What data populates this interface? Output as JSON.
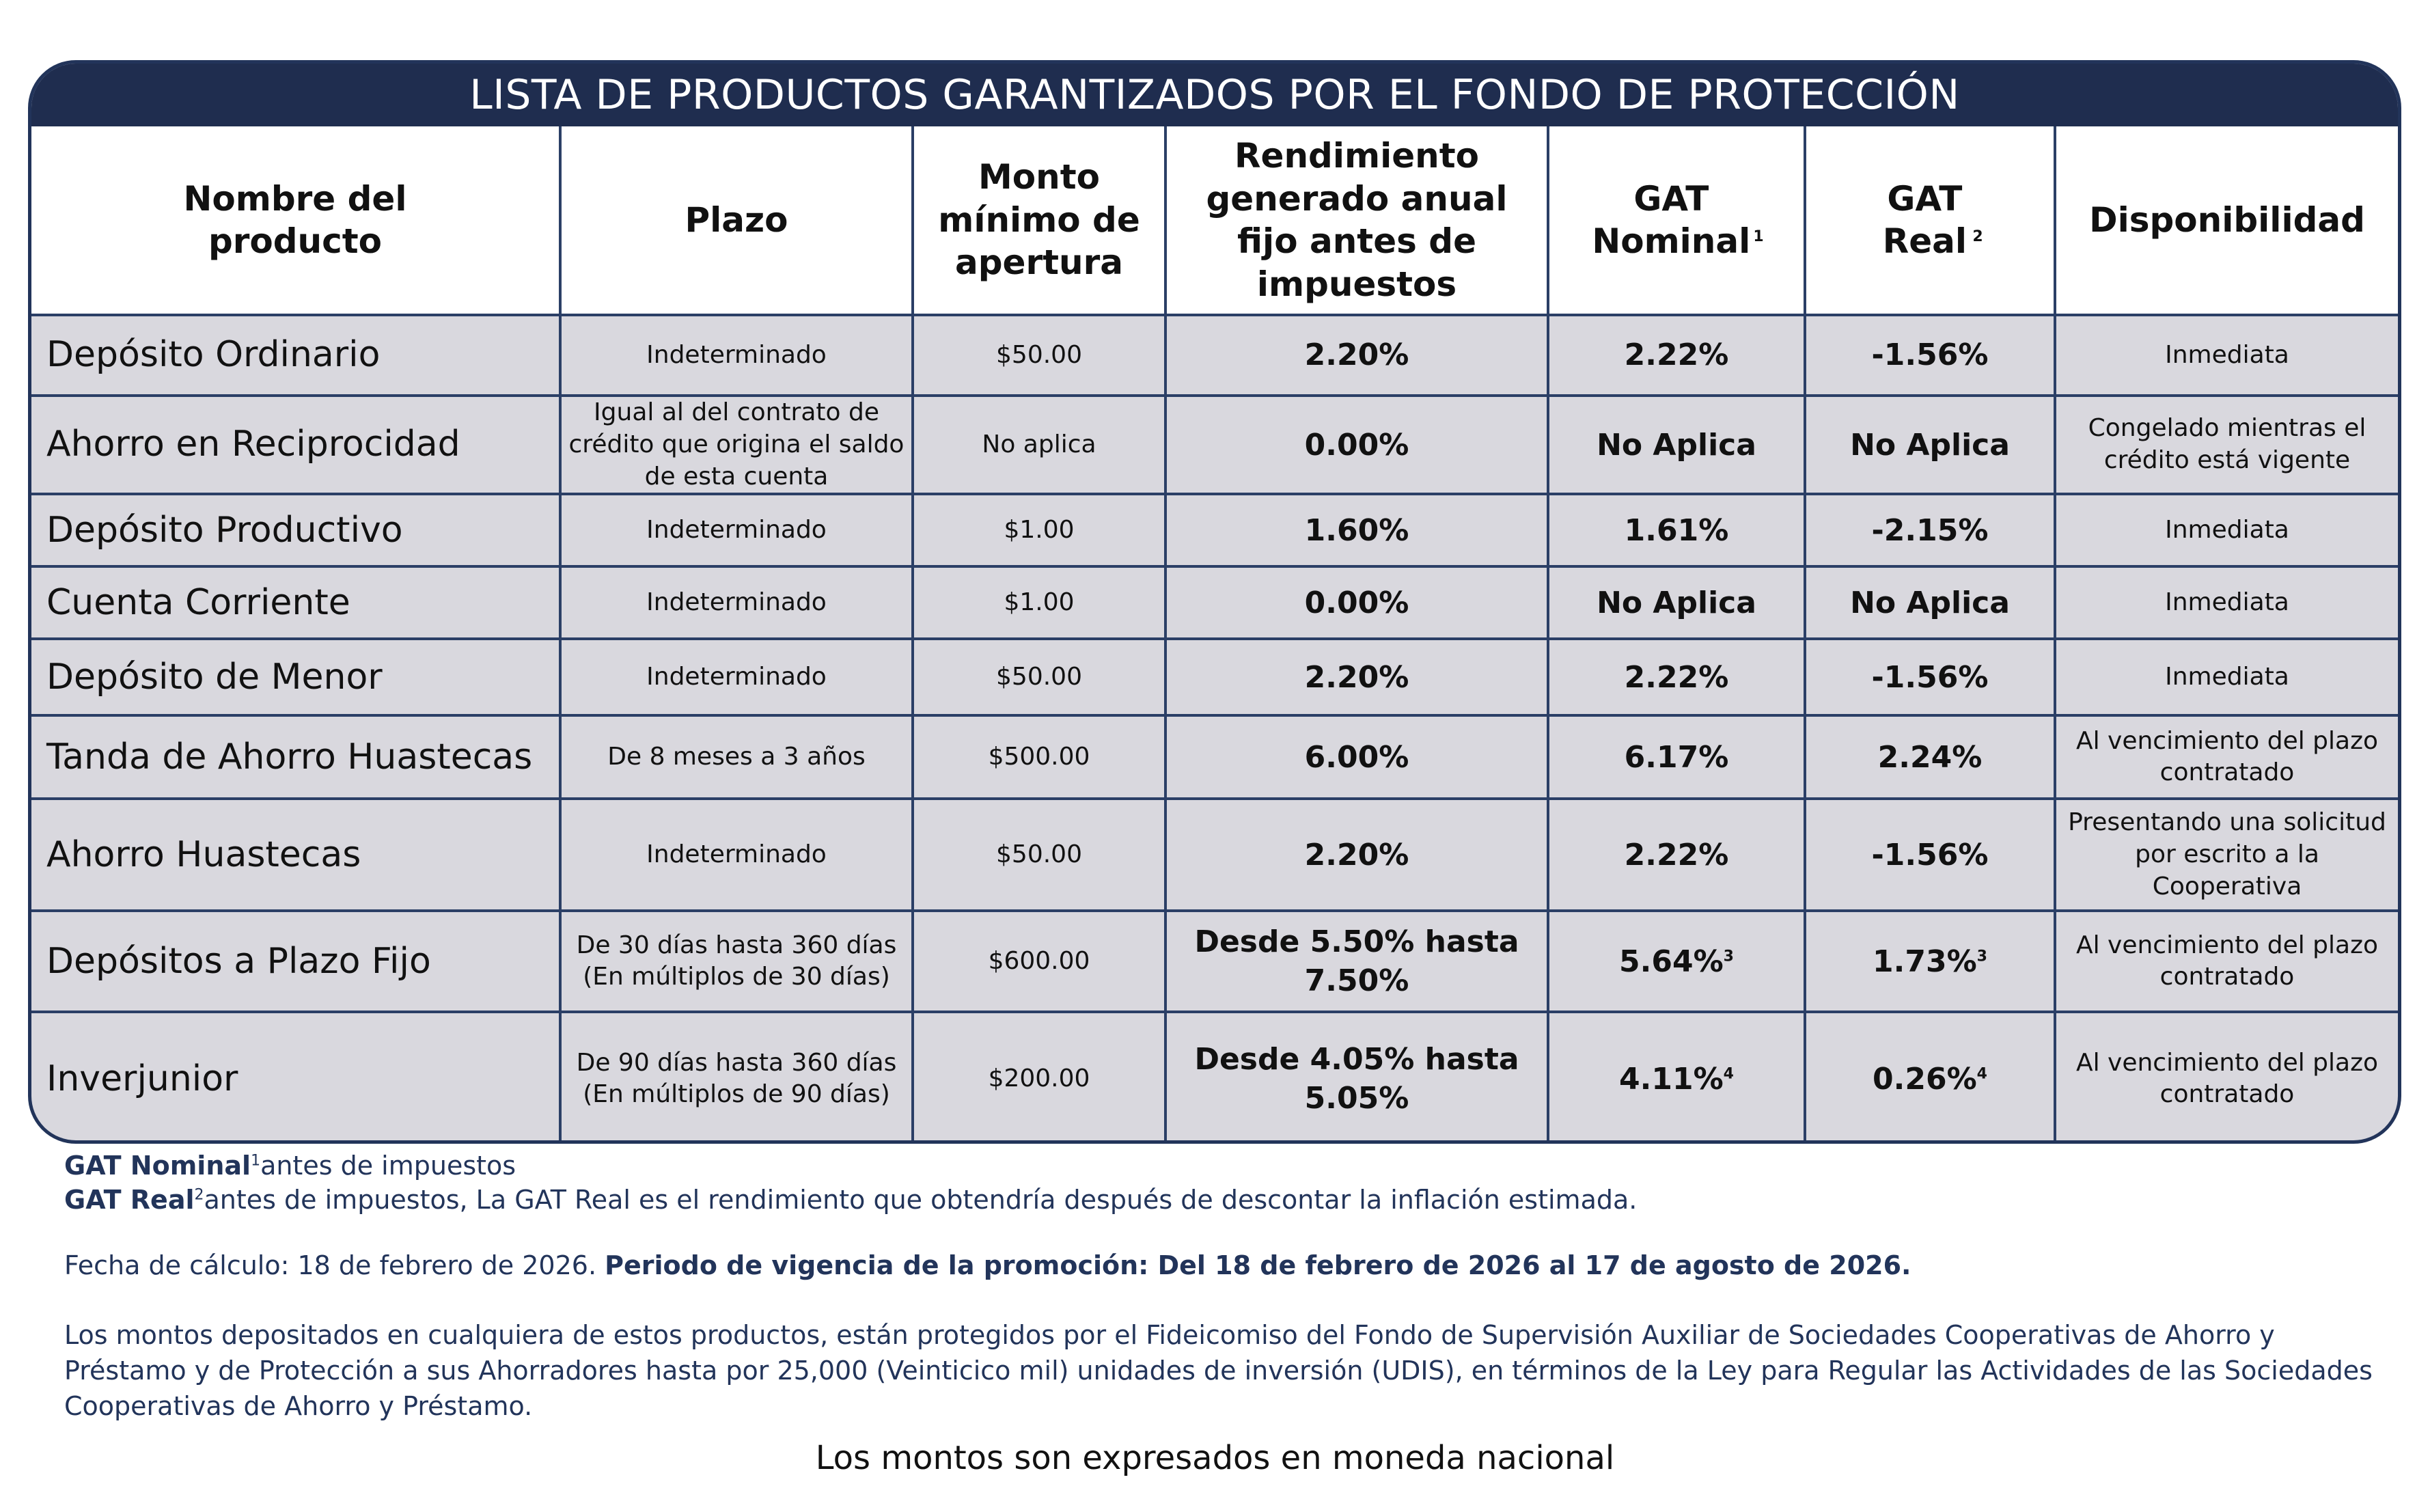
{
  "title": "LISTA DE PRODUCTOS GARANTIZADOS POR EL FONDO DE PROTECCIÓN",
  "headers": {
    "nombre": "Nombre del producto",
    "plazo": "Plazo",
    "monto": "Monto mínimo de apertura",
    "rendimiento": "Rendimiento generado anual fijo antes de impuestos",
    "gat_nominal": "GAT Nominal",
    "gat_nominal_sup": "1",
    "gat_real": "GAT Real",
    "gat_real_sup": "2",
    "disponibilidad": "Disponibilidad"
  },
  "rows": [
    {
      "nombre": "Depósito Ordinario",
      "plazo": "Indeterminado",
      "monto": "$50.00",
      "rendimiento": "2.20%",
      "gat_nominal": "2.22%",
      "gat_nominal_sup": "",
      "gat_real": "-1.56%",
      "gat_real_sup": "",
      "disponibilidad": "Inmediata"
    },
    {
      "nombre": "Ahorro en Reciprocidad",
      "plazo": "Igual al del contrato de crédito que origina el saldo de esta cuenta",
      "monto": "No aplica",
      "rendimiento": "0.00%",
      "gat_nominal": "No Aplica",
      "gat_nominal_sup": "",
      "gat_real": "No Aplica",
      "gat_real_sup": "",
      "disponibilidad": "Congelado mientras el crédito está vigente"
    },
    {
      "nombre": "Depósito Productivo",
      "plazo": "Indeterminado",
      "monto": "$1.00",
      "rendimiento": "1.60%",
      "gat_nominal": "1.61%",
      "gat_nominal_sup": "",
      "gat_real": "-2.15%",
      "gat_real_sup": "",
      "disponibilidad": "Inmediata"
    },
    {
      "nombre": "Cuenta Corriente",
      "plazo": "Indeterminado",
      "monto": "$1.00",
      "rendimiento": "0.00%",
      "gat_nominal": "No Aplica",
      "gat_nominal_sup": "",
      "gat_real": "No Aplica",
      "gat_real_sup": "",
      "disponibilidad": "Inmediata"
    },
    {
      "nombre": "Depósito de Menor",
      "plazo": "Indeterminado",
      "monto": "$50.00",
      "rendimiento": "2.20%",
      "gat_nominal": "2.22%",
      "gat_nominal_sup": "",
      "gat_real": "-1.56%",
      "gat_real_sup": "",
      "disponibilidad": "Inmediata"
    },
    {
      "nombre": "Tanda de Ahorro Huastecas",
      "plazo": "De 8 meses a 3 años",
      "monto": "$500.00",
      "rendimiento": "6.00%",
      "gat_nominal": "6.17%",
      "gat_nominal_sup": "",
      "gat_real": "2.24%",
      "gat_real_sup": "",
      "disponibilidad": "Al vencimiento del plazo contratado"
    },
    {
      "nombre": "Ahorro Huastecas",
      "plazo": "Indeterminado",
      "monto": "$50.00",
      "rendimiento": "2.20%",
      "gat_nominal": "2.22%",
      "gat_nominal_sup": "",
      "gat_real": "-1.56%",
      "gat_real_sup": "",
      "disponibilidad": "Presentando una solicitud por escrito a la Cooperativa"
    },
    {
      "nombre": "Depósitos a Plazo Fijo",
      "plazo": "De 30 días hasta 360 días (En múltiplos de 30 días)",
      "monto": "$600.00",
      "rendimiento": "Desde 5.50% hasta 7.50%",
      "gat_nominal": "5.64%",
      "gat_nominal_sup": "3",
      "gat_real": "1.73%",
      "gat_real_sup": "3",
      "disponibilidad": "Al vencimiento del plazo contratado"
    },
    {
      "nombre": "Inverjunior",
      "plazo": "De 90 días hasta 360 días (En múltiplos de 90 días)",
      "monto": "$200.00",
      "rendimiento": "Desde 4.05% hasta 5.05%",
      "gat_nominal": "4.11%",
      "gat_nominal_sup": "4",
      "gat_real": "0.26%",
      "gat_real_sup": "4",
      "disponibilidad": "Al vencimiento del plazo contratado"
    }
  ],
  "notes": {
    "gat_nominal_label": "GAT Nominal",
    "gat_nominal_sup": "1",
    "gat_nominal_text": "antes de impuestos",
    "gat_real_label": "GAT Real",
    "gat_real_sup": "2",
    "gat_real_text": "antes de impuestos, La GAT Real es el rendimiento que obtendría después de descontar la inflación estimada.",
    "fecha_calculo": "Fecha de cálculo: 18 de febrero de 2026.",
    "vigencia": "Periodo de vigencia de la promoción: Del 18 de febrero de 2026 al 17 de agosto de 2026.",
    "proteccion": "Los montos depositados en cualquiera de estos productos, están protegidos por el Fideicomiso del Fondo de Supervisión Auxiliar de Sociedades Cooperativas de Ahorro y Préstamo y de Protección a sus Ahorradores hasta por 25,000 (Veinticico mil) unidades de inversión (UDIS), en términos de la Ley para Regular las Actividades de las Sociedades Cooperativas de Ahorro y Préstamo.",
    "moneda": "Los montos son expresados en moneda nacional"
  }
}
